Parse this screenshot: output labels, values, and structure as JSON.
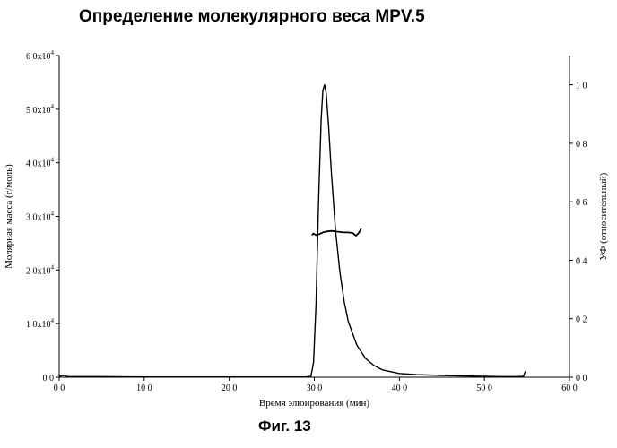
{
  "title": "Определение молекулярного веса MPV.5",
  "caption": "Фиг. 13",
  "chart_data": {
    "type": "line",
    "title": "Определение молекулярного веса MPV.5",
    "xlabel": "Время элюирования (мин)",
    "ylabel": "Молярная масса (г/моль)",
    "y2label": "УФ (относительный)",
    "xlim": [
      0,
      60
    ],
    "ylim": [
      0,
      60000
    ],
    "y2lim": [
      0,
      1.1
    ],
    "grid": false,
    "x_ticks": [
      {
        "value": 0,
        "label": "0 0"
      },
      {
        "value": 10,
        "label": "10 0"
      },
      {
        "value": 20,
        "label": "20 0"
      },
      {
        "value": 30,
        "label": "30 0"
      },
      {
        "value": 40,
        "label": "40 0"
      },
      {
        "value": 50,
        "label": "50 0"
      },
      {
        "value": 60,
        "label": "60 0"
      }
    ],
    "y_ticks": [
      {
        "value": 0,
        "mant": "0 0",
        "exp": ""
      },
      {
        "value": 10000,
        "mant": "1 0x10",
        "exp": "4"
      },
      {
        "value": 20000,
        "mant": "2 0x10",
        "exp": "4"
      },
      {
        "value": 30000,
        "mant": "3 0x10",
        "exp": "4"
      },
      {
        "value": 40000,
        "mant": "4 0x10",
        "exp": "4"
      },
      {
        "value": 50000,
        "mant": "5 0x10",
        "exp": "4"
      },
      {
        "value": 60000,
        "mant": "6 0x10",
        "exp": "4"
      }
    ],
    "y2_ticks": [
      {
        "value": 0.0,
        "label": "0 0"
      },
      {
        "value": 0.2,
        "label": "0 2"
      },
      {
        "value": 0.4,
        "label": "0 4"
      },
      {
        "value": 0.6,
        "label": "0 6"
      },
      {
        "value": 0.8,
        "label": "0 8"
      },
      {
        "value": 1.0,
        "label": "1 0"
      }
    ],
    "series": [
      {
        "axis": "y2",
        "points": [
          [
            0.0,
            0.003
          ],
          [
            0.5,
            0.006
          ],
          [
            1.0,
            0.002
          ],
          [
            5,
            0.002
          ],
          [
            10,
            0.001
          ],
          [
            15,
            0.001
          ],
          [
            20,
            0.001
          ],
          [
            25,
            0.001
          ],
          [
            29.0,
            0.001
          ],
          [
            29.6,
            0.003
          ],
          [
            29.9,
            0.05
          ],
          [
            30.2,
            0.25
          ],
          [
            30.5,
            0.6
          ],
          [
            30.8,
            0.88
          ],
          [
            31.0,
            0.98
          ],
          [
            31.2,
            1.0
          ],
          [
            31.4,
            0.97
          ],
          [
            31.7,
            0.85
          ],
          [
            32.0,
            0.7
          ],
          [
            32.5,
            0.5
          ],
          [
            33.0,
            0.36
          ],
          [
            33.5,
            0.26
          ],
          [
            34.0,
            0.19
          ],
          [
            35.0,
            0.11
          ],
          [
            36.0,
            0.065
          ],
          [
            37.0,
            0.04
          ],
          [
            38.0,
            0.025
          ],
          [
            40.0,
            0.013
          ],
          [
            42.0,
            0.009
          ],
          [
            45.0,
            0.006
          ],
          [
            48.0,
            0.004
          ],
          [
            50.0,
            0.003
          ],
          [
            52.0,
            0.002
          ],
          [
            54.0,
            0.002
          ],
          [
            54.6,
            0.003
          ],
          [
            54.7,
            0.012
          ],
          [
            54.8,
            0.02
          ]
        ]
      },
      {
        "axis": "y",
        "points": [
          [
            29.7,
            26500
          ],
          [
            29.9,
            26800
          ],
          [
            30.2,
            26500
          ],
          [
            30.6,
            26700
          ],
          [
            31.0,
            27000
          ],
          [
            31.5,
            27200
          ],
          [
            32.0,
            27300
          ],
          [
            32.5,
            27200
          ],
          [
            33.0,
            27100
          ],
          [
            33.5,
            27000
          ],
          [
            34.0,
            27000
          ],
          [
            34.5,
            26900
          ],
          [
            34.9,
            26400
          ],
          [
            35.1,
            26700
          ],
          [
            35.3,
            27100
          ],
          [
            35.5,
            27700
          ]
        ]
      }
    ]
  }
}
